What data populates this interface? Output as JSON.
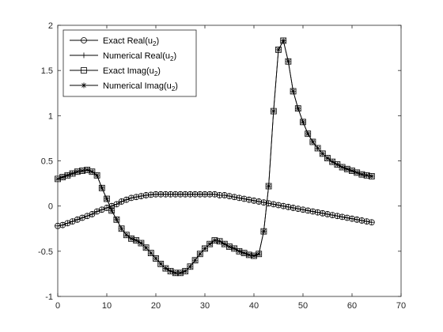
{
  "chart_data": {
    "type": "line",
    "title": "",
    "xlabel": "",
    "ylabel": "",
    "xlim": [
      0,
      70
    ],
    "ylim": [
      -1,
      2
    ],
    "xticks": [
      0,
      10,
      20,
      30,
      40,
      50,
      60,
      70
    ],
    "yticks": [
      -1,
      -0.5,
      0,
      0.5,
      1,
      1.5,
      2
    ],
    "ytick_labels": [
      "-1",
      "-0.5",
      "0",
      "0.5",
      "1",
      "1.5",
      "2"
    ],
    "grid": false,
    "legend_position": "top-left",
    "legend": [
      {
        "base": "Exact Real(u",
        "sub": "2",
        "tail": ")",
        "marker": "circle"
      },
      {
        "base": "Numerical Real(u",
        "sub": "2",
        "tail": ")",
        "marker": "plus"
      },
      {
        "base": "Exact Imag(u",
        "sub": "2",
        "tail": ")",
        "marker": "square"
      },
      {
        "base": "Numerical Imag(u",
        "sub": "2",
        "tail": ")",
        "marker": "asterisk"
      }
    ],
    "colors": {
      "line": "#000000",
      "axes": "#262626",
      "background": "#ffffff"
    },
    "x": [
      0,
      1,
      2,
      3,
      4,
      5,
      6,
      7,
      8,
      9,
      10,
      11,
      12,
      13,
      14,
      15,
      16,
      17,
      18,
      19,
      20,
      21,
      22,
      23,
      24,
      25,
      26,
      27,
      28,
      29,
      30,
      31,
      32,
      33,
      34,
      35,
      36,
      37,
      38,
      39,
      40,
      41,
      42,
      43,
      44,
      45,
      46,
      47,
      48,
      49,
      50,
      51,
      52,
      53,
      54,
      55,
      56,
      57,
      58,
      59,
      60,
      61,
      62,
      63,
      64
    ],
    "series": [
      {
        "name": "Exact Real(u2)",
        "marker": "circle",
        "values": [
          -0.22,
          -0.21,
          -0.19,
          -0.17,
          -0.15,
          -0.13,
          -0.11,
          -0.09,
          -0.06,
          -0.04,
          -0.02,
          0.0,
          0.02,
          0.05,
          0.07,
          0.09,
          0.1,
          0.11,
          0.12,
          0.125,
          0.13,
          0.13,
          0.13,
          0.13,
          0.13,
          0.13,
          0.13,
          0.13,
          0.13,
          0.13,
          0.13,
          0.13,
          0.13,
          0.12,
          0.12,
          0.11,
          0.1,
          0.09,
          0.08,
          0.07,
          0.06,
          0.05,
          0.04,
          0.03,
          0.02,
          0.01,
          0.0,
          -0.01,
          -0.02,
          -0.03,
          -0.04,
          -0.05,
          -0.06,
          -0.07,
          -0.08,
          -0.09,
          -0.1,
          -0.11,
          -0.12,
          -0.13,
          -0.14,
          -0.15,
          -0.16,
          -0.17,
          -0.18
        ]
      },
      {
        "name": "Numerical Real(u2)",
        "marker": "plus",
        "values": [
          -0.22,
          -0.21,
          -0.19,
          -0.17,
          -0.15,
          -0.13,
          -0.11,
          -0.09,
          -0.06,
          -0.04,
          -0.02,
          0.0,
          0.02,
          0.05,
          0.07,
          0.09,
          0.1,
          0.11,
          0.12,
          0.125,
          0.13,
          0.13,
          0.13,
          0.13,
          0.13,
          0.13,
          0.13,
          0.13,
          0.13,
          0.13,
          0.13,
          0.13,
          0.13,
          0.12,
          0.12,
          0.11,
          0.1,
          0.09,
          0.08,
          0.07,
          0.06,
          0.05,
          0.04,
          0.03,
          0.02,
          0.01,
          0.0,
          -0.01,
          -0.02,
          -0.03,
          -0.04,
          -0.05,
          -0.06,
          -0.07,
          -0.08,
          -0.09,
          -0.1,
          -0.11,
          -0.12,
          -0.13,
          -0.14,
          -0.15,
          -0.16,
          -0.17,
          -0.18
        ]
      },
      {
        "name": "Exact Imag(u2)",
        "marker": "square",
        "values": [
          0.3,
          0.32,
          0.34,
          0.36,
          0.38,
          0.39,
          0.4,
          0.38,
          0.34,
          0.2,
          0.08,
          -0.05,
          -0.15,
          -0.25,
          -0.32,
          -0.36,
          -0.38,
          -0.41,
          -0.46,
          -0.52,
          -0.58,
          -0.64,
          -0.69,
          -0.72,
          -0.74,
          -0.74,
          -0.72,
          -0.67,
          -0.6,
          -0.53,
          -0.47,
          -0.42,
          -0.38,
          -0.39,
          -0.42,
          -0.45,
          -0.47,
          -0.5,
          -0.52,
          -0.54,
          -0.55,
          -0.53,
          -0.28,
          0.22,
          1.05,
          1.73,
          1.83,
          1.6,
          1.27,
          1.08,
          0.93,
          0.8,
          0.71,
          0.64,
          0.58,
          0.53,
          0.49,
          0.46,
          0.43,
          0.41,
          0.39,
          0.37,
          0.35,
          0.34,
          0.33
        ]
      },
      {
        "name": "Numerical Imag(u2)",
        "marker": "asterisk",
        "values": [
          0.3,
          0.32,
          0.34,
          0.36,
          0.38,
          0.39,
          0.4,
          0.38,
          0.34,
          0.2,
          0.08,
          -0.05,
          -0.15,
          -0.25,
          -0.32,
          -0.36,
          -0.38,
          -0.41,
          -0.46,
          -0.52,
          -0.58,
          -0.64,
          -0.69,
          -0.72,
          -0.74,
          -0.74,
          -0.72,
          -0.67,
          -0.6,
          -0.53,
          -0.47,
          -0.42,
          -0.38,
          -0.39,
          -0.42,
          -0.45,
          -0.47,
          -0.5,
          -0.52,
          -0.54,
          -0.55,
          -0.53,
          -0.28,
          0.22,
          1.05,
          1.73,
          1.83,
          1.6,
          1.27,
          1.08,
          0.93,
          0.8,
          0.71,
          0.64,
          0.58,
          0.53,
          0.49,
          0.46,
          0.43,
          0.41,
          0.39,
          0.37,
          0.35,
          0.34,
          0.33
        ]
      }
    ]
  }
}
